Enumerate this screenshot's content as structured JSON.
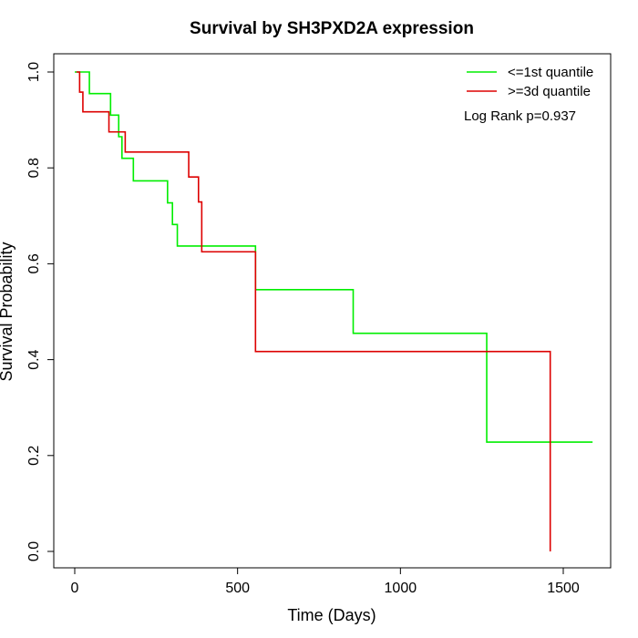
{
  "chart_data": {
    "type": "line",
    "step": true,
    "title": "Survival by SH3PXD2A expression",
    "xlabel": "Time (Days)",
    "ylabel": "Survival Probability",
    "xlim": [
      0,
      1590
    ],
    "ylim": [
      0,
      1
    ],
    "x_ticks": [
      0,
      500,
      1000,
      1500
    ],
    "y_ticks": [
      0.0,
      0.2,
      0.4,
      0.6,
      0.8,
      1.0
    ],
    "x_tick_labels": [
      "0",
      "500",
      "1000",
      "1500"
    ],
    "y_tick_labels": [
      "0.0",
      "0.2",
      "0.4",
      "0.6",
      "0.8",
      "1.0"
    ],
    "grid": false,
    "legend_position": "top-right",
    "annotation": "Log Rank p=0.937",
    "series": [
      {
        "name": "<=1st quantile",
        "color": "#00ee00",
        "x": [
          0,
          45,
          110,
          135,
          145,
          180,
          285,
          300,
          315,
          555,
          855,
          1265,
          1590
        ],
        "y": [
          1.0,
          0.955,
          0.91,
          0.865,
          0.82,
          0.773,
          0.727,
          0.682,
          0.637,
          0.546,
          0.455,
          0.228,
          0.228
        ]
      },
      {
        "name": ">=3d quantile",
        "color": "#dd0000",
        "x": [
          5,
          15,
          25,
          105,
          155,
          350,
          380,
          390,
          555,
          1460,
          1460
        ],
        "y": [
          1.0,
          0.958,
          0.917,
          0.875,
          0.833,
          0.781,
          0.729,
          0.625,
          0.417,
          0.417,
          0.0
        ]
      }
    ]
  }
}
